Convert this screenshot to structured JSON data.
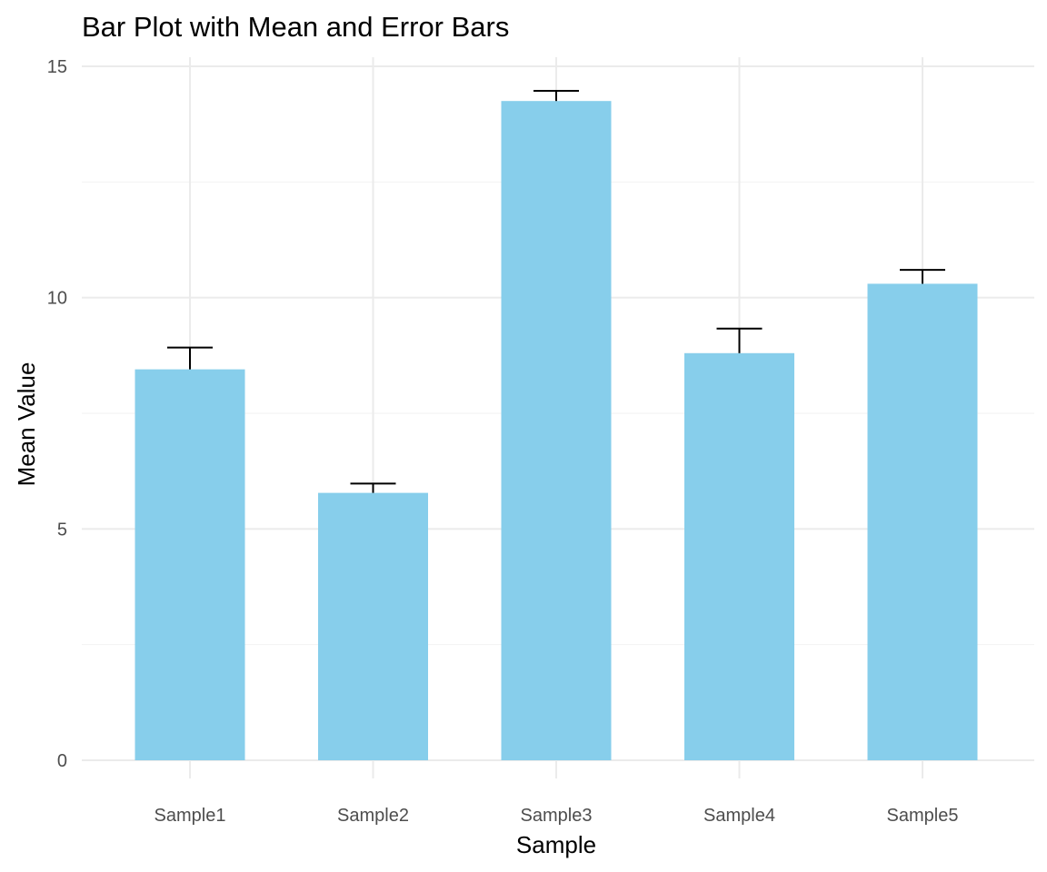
{
  "chart_data": {
    "type": "bar",
    "title": "Bar Plot with Mean and Error Bars",
    "xlabel": "Sample",
    "ylabel": "Mean Value",
    "categories": [
      "Sample1",
      "Sample2",
      "Sample3",
      "Sample4",
      "Sample5"
    ],
    "values": [
      8.45,
      5.78,
      14.25,
      8.8,
      10.3
    ],
    "error_upper": [
      8.92,
      5.98,
      14.47,
      9.33,
      10.6
    ],
    "ylim": [
      0,
      15
    ],
    "yticks": [
      0,
      5,
      10,
      15
    ],
    "ytick_labels": [
      "0",
      "5",
      "10",
      "15"
    ],
    "grid": true,
    "colors": {
      "bar": "#87CEEB",
      "errorbar": "#000000"
    }
  }
}
